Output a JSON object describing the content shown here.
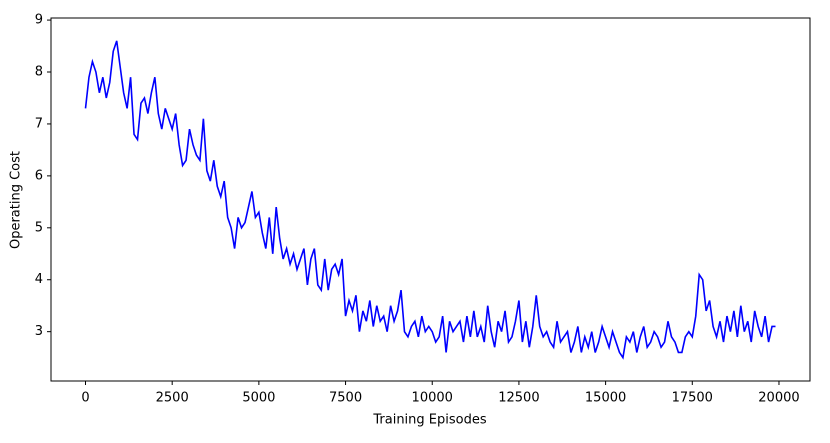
{
  "chart_data": {
    "type": "line",
    "xlabel": "Training Episodes",
    "ylabel": "Operating Cost",
    "x": [
      0,
      100,
      200,
      300,
      400,
      500,
      600,
      700,
      800,
      900,
      1000,
      1100,
      1200,
      1300,
      1400,
      1500,
      1600,
      1700,
      1800,
      1900,
      2000,
      2100,
      2200,
      2300,
      2400,
      2500,
      2600,
      2700,
      2800,
      2900,
      3000,
      3100,
      3200,
      3300,
      3400,
      3500,
      3600,
      3700,
      3800,
      3900,
      4000,
      4100,
      4200,
      4300,
      4400,
      4500,
      4600,
      4700,
      4800,
      4900,
      5000,
      5100,
      5200,
      5300,
      5400,
      5500,
      5600,
      5700,
      5800,
      5900,
      6000,
      6100,
      6200,
      6300,
      6400,
      6500,
      6600,
      6700,
      6800,
      6900,
      7000,
      7100,
      7200,
      7300,
      7400,
      7500,
      7600,
      7700,
      7800,
      7900,
      8000,
      8100,
      8200,
      8300,
      8400,
      8500,
      8600,
      8700,
      8800,
      8900,
      9000,
      9100,
      9200,
      9300,
      9400,
      9500,
      9600,
      9700,
      9800,
      9900,
      10000,
      10100,
      10200,
      10300,
      10400,
      10500,
      10600,
      10700,
      10800,
      10900,
      11000,
      11100,
      11200,
      11300,
      11400,
      11500,
      11600,
      11700,
      11800,
      11900,
      12000,
      12100,
      12200,
      12300,
      12400,
      12500,
      12600,
      12700,
      12800,
      12900,
      13000,
      13100,
      13200,
      13300,
      13400,
      13500,
      13600,
      13700,
      13800,
      13900,
      14000,
      14100,
      14200,
      14300,
      14400,
      14500,
      14600,
      14700,
      14800,
      14900,
      15000,
      15100,
      15200,
      15300,
      15400,
      15500,
      15600,
      15700,
      15800,
      15900,
      16000,
      16100,
      16200,
      16300,
      16400,
      16500,
      16600,
      16700,
      16800,
      16900,
      17000,
      17100,
      17200,
      17300,
      17400,
      17500,
      17600,
      17700,
      17800,
      17900,
      18000,
      18100,
      18200,
      18300,
      18400,
      18500,
      18600,
      18700,
      18800,
      18900,
      19000,
      19100,
      19200,
      19300,
      19400,
      19500,
      19600,
      19700,
      19800,
      19900
    ],
    "series": [
      {
        "color": "#0000ff",
        "values": [
          7.3,
          7.9,
          8.2,
          8.0,
          7.6,
          7.9,
          7.5,
          7.8,
          8.4,
          8.6,
          8.1,
          7.6,
          7.3,
          7.9,
          6.8,
          6.7,
          7.4,
          7.5,
          7.2,
          7.6,
          7.9,
          7.2,
          6.9,
          7.3,
          7.1,
          6.9,
          7.2,
          6.6,
          6.2,
          6.3,
          6.9,
          6.6,
          6.4,
          6.3,
          7.1,
          6.1,
          5.9,
          6.3,
          5.8,
          5.6,
          5.9,
          5.2,
          5.0,
          4.6,
          5.2,
          5.0,
          5.1,
          5.4,
          5.7,
          5.2,
          5.3,
          4.9,
          4.6,
          5.2,
          4.5,
          5.4,
          4.8,
          4.4,
          4.6,
          4.3,
          4.5,
          4.2,
          4.4,
          4.6,
          3.9,
          4.4,
          4.6,
          3.9,
          3.8,
          4.4,
          3.8,
          4.2,
          4.3,
          4.1,
          4.4,
          3.3,
          3.6,
          3.4,
          3.7,
          3.0,
          3.4,
          3.2,
          3.6,
          3.1,
          3.5,
          3.2,
          3.3,
          3.0,
          3.5,
          3.2,
          3.4,
          3.8,
          3.0,
          2.9,
          3.1,
          3.2,
          2.9,
          3.3,
          3.0,
          3.1,
          3.0,
          2.8,
          2.9,
          3.3,
          2.6,
          3.2,
          3.0,
          3.1,
          3.2,
          2.8,
          3.3,
          2.9,
          3.4,
          2.9,
          3.1,
          2.8,
          3.5,
          3.0,
          2.7,
          3.2,
          3.0,
          3.4,
          2.8,
          2.9,
          3.2,
          3.6,
          2.8,
          3.2,
          2.7,
          3.1,
          3.7,
          3.1,
          2.9,
          3.0,
          2.8,
          2.7,
          3.2,
          2.8,
          2.9,
          3.0,
          2.6,
          2.8,
          3.1,
          2.6,
          2.9,
          2.7,
          3.0,
          2.6,
          2.8,
          3.1,
          2.9,
          2.7,
          3.0,
          2.8,
          2.6,
          2.5,
          2.9,
          2.8,
          3.0,
          2.6,
          2.9,
          3.1,
          2.7,
          2.8,
          3.0,
          2.9,
          2.7,
          2.8,
          3.2,
          2.9,
          2.8,
          2.6,
          2.6,
          2.9,
          3.0,
          2.9,
          3.3,
          4.1,
          4.0,
          3.4,
          3.6,
          3.1,
          2.9,
          3.2,
          2.8,
          3.3,
          3.0,
          3.4,
          2.9,
          3.5,
          3.0,
          3.2,
          2.8,
          3.4,
          3.1,
          2.9,
          3.3,
          2.8,
          3.1,
          3.1
        ]
      }
    ],
    "xlim": [
      -995,
      20895
    ],
    "ylim": [
      2.05,
      9.04
    ],
    "xticks": [
      0,
      2500,
      5000,
      7500,
      10000,
      12500,
      15000,
      17500,
      20000
    ],
    "yticks": [
      3,
      4,
      5,
      6,
      7,
      8,
      9
    ]
  }
}
